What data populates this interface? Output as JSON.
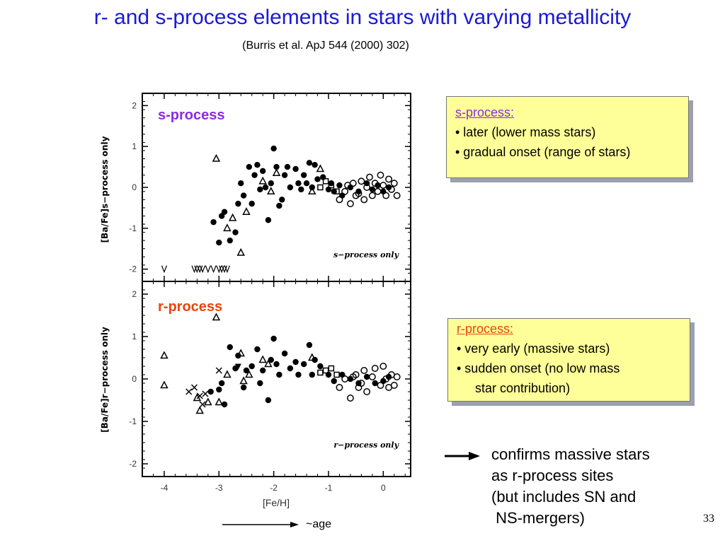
{
  "slide": {
    "title": "r- and s-process elements in stars with varying metallicity",
    "subtitle": "(Burris et al. ApJ 544 (2000) 302)",
    "page_number": "33",
    "age_label": "~age"
  },
  "s_box": {
    "heading": "s-process:",
    "lines": [
      "• later (lower mass stars)",
      "• gradual onset (range of stars)"
    ]
  },
  "r_box": {
    "heading": "r-process:",
    "lines": [
      "• very early (massive stars)",
      "• sudden onset (no low mass",
      "star contribution)"
    ]
  },
  "conclusion": {
    "lines": [
      "confirms massive stars",
      "as r-process sites",
      "(but includes SN and",
      " NS-mergers)"
    ]
  },
  "colors": {
    "title": "#1a1ad6",
    "s_process": "#8a2be2",
    "r_process": "#e8450a",
    "box_fill": "#ffff99"
  },
  "chart_data": [
    {
      "type": "scatter",
      "panel_label": "s-process",
      "annotation": "s−process  only",
      "ylabel": "[Ba/Fe]s−process only",
      "xlabel": "",
      "xlim": [
        -4.4,
        0.5
      ],
      "ylim": [
        -2.3,
        2.3
      ],
      "yticks": [
        -2,
        -1,
        0,
        1,
        2
      ],
      "upper_limit_x": [
        -4.0,
        -3.45,
        -3.4,
        -3.35,
        -3.3,
        -3.2,
        -3.1,
        -3.0,
        -2.95,
        -2.9,
        -2.85
      ],
      "upper_limit_y": -2.0,
      "series": [
        {
          "marker": "filled-circle",
          "points": [
            [
              -3.1,
              -0.85
            ],
            [
              -3.0,
              -1.35
            ],
            [
              -2.95,
              -0.7
            ],
            [
              -2.9,
              -0.6
            ],
            [
              -2.8,
              -1.3
            ],
            [
              -2.7,
              -1.1
            ],
            [
              -2.65,
              -0.4
            ],
            [
              -2.6,
              0.1
            ],
            [
              -2.55,
              -0.2
            ],
            [
              -2.45,
              0.5
            ],
            [
              -2.4,
              -0.4
            ],
            [
              -2.35,
              0.3
            ],
            [
              -2.3,
              0.55
            ],
            [
              -2.25,
              -0.05
            ],
            [
              -2.2,
              0.4
            ],
            [
              -2.15,
              0.0
            ],
            [
              -2.1,
              -0.8
            ],
            [
              -2.05,
              0.1
            ],
            [
              -2.0,
              0.95
            ],
            [
              -1.95,
              0.5
            ],
            [
              -1.9,
              -0.45
            ],
            [
              -1.85,
              -0.3
            ],
            [
              -1.8,
              0.3
            ],
            [
              -1.75,
              0.5
            ],
            [
              -1.7,
              0.0
            ],
            [
              -1.6,
              0.45
            ],
            [
              -1.55,
              0.1
            ],
            [
              -1.5,
              -0.05
            ],
            [
              -1.45,
              0.3
            ],
            [
              -1.4,
              0.1
            ],
            [
              -1.35,
              0.6
            ],
            [
              -1.3,
              0.0
            ],
            [
              -1.25,
              0.55
            ],
            [
              -1.2,
              0.2
            ],
            [
              -1.1,
              0.25
            ],
            [
              -1.0,
              -0.05
            ],
            [
              -0.95,
              0.1
            ],
            [
              -0.9,
              -0.1
            ],
            [
              -0.8,
              0.05
            ],
            [
              -0.75,
              -0.2
            ],
            [
              -0.6,
              0.0
            ],
            [
              -0.45,
              -0.1
            ],
            [
              -0.3,
              0.1
            ],
            [
              -0.2,
              -0.05
            ],
            [
              -0.1,
              0.05
            ],
            [
              0.0,
              -0.1
            ],
            [
              0.1,
              0.0
            ]
          ]
        },
        {
          "marker": "open-circle",
          "points": [
            [
              -0.8,
              -0.3
            ],
            [
              -0.7,
              -0.1
            ],
            [
              -0.6,
              -0.4
            ],
            [
              -0.55,
              0.1
            ],
            [
              -0.5,
              -0.2
            ],
            [
              -0.4,
              0.15
            ],
            [
              -0.35,
              -0.3
            ],
            [
              -0.3,
              0.0
            ],
            [
              -0.25,
              0.25
            ],
            [
              -0.2,
              -0.2
            ],
            [
              -0.15,
              0.1
            ],
            [
              -0.1,
              -0.1
            ],
            [
              -0.05,
              0.3
            ],
            [
              0.0,
              0.05
            ],
            [
              0.05,
              -0.2
            ],
            [
              0.1,
              0.2
            ],
            [
              0.15,
              -0.05
            ],
            [
              0.2,
              0.1
            ],
            [
              0.25,
              -0.2
            ],
            [
              -0.45,
              -0.15
            ],
            [
              -0.65,
              0.05
            ]
          ]
        },
        {
          "marker": "triangle",
          "points": [
            [
              -3.05,
              0.7
            ],
            [
              -2.85,
              -1.0
            ],
            [
              -2.75,
              -0.75
            ],
            [
              -2.6,
              -1.6
            ],
            [
              -2.5,
              -0.6
            ],
            [
              -2.2,
              0.15
            ],
            [
              -2.05,
              -0.1
            ],
            [
              -1.95,
              0.35
            ],
            [
              -1.3,
              -0.1
            ],
            [
              -1.15,
              0.45
            ]
          ]
        },
        {
          "marker": "square",
          "points": [
            [
              -1.15,
              0.0
            ],
            [
              -1.05,
              0.15
            ],
            [
              -0.95,
              0.05
            ],
            [
              -0.85,
              -0.1
            ]
          ]
        }
      ]
    },
    {
      "type": "scatter",
      "panel_label": "r-process",
      "annotation": "r−process  only",
      "ylabel": "[Ba/Fe]r−process only",
      "xlabel": "[Fe/H]",
      "xlim": [
        -4.4,
        0.5
      ],
      "ylim": [
        -2.3,
        2.3
      ],
      "xticks": [
        -4,
        -3,
        -2,
        -1,
        0
      ],
      "yticks": [
        -2,
        -1,
        0,
        1,
        2
      ],
      "series": [
        {
          "marker": "filled-circle",
          "points": [
            [
              -3.15,
              -0.3
            ],
            [
              -3.0,
              -0.25
            ],
            [
              -2.95,
              -0.1
            ],
            [
              -2.9,
              -0.6
            ],
            [
              -2.8,
              0.75
            ],
            [
              -2.7,
              0.25
            ],
            [
              -2.65,
              0.55
            ],
            [
              -2.55,
              -0.2
            ],
            [
              -2.5,
              0.2
            ],
            [
              -2.4,
              0.3
            ],
            [
              -2.3,
              0.7
            ],
            [
              -2.25,
              -0.1
            ],
            [
              -2.2,
              0.2
            ],
            [
              -2.1,
              -0.5
            ],
            [
              -2.05,
              0.45
            ],
            [
              -2.0,
              0.95
            ],
            [
              -1.95,
              0.35
            ],
            [
              -1.9,
              0.1
            ],
            [
              -1.8,
              0.6
            ],
            [
              -1.7,
              0.25
            ],
            [
              -1.6,
              0.4
            ],
            [
              -1.55,
              0.1
            ],
            [
              -1.45,
              0.35
            ],
            [
              -1.35,
              0.8
            ],
            [
              -1.3,
              0.1
            ],
            [
              -1.25,
              0.45
            ],
            [
              -1.15,
              0.3
            ],
            [
              -1.0,
              0.1
            ],
            [
              -0.9,
              -0.05
            ],
            [
              -0.75,
              0.1
            ],
            [
              -0.6,
              0.0
            ],
            [
              -0.45,
              -0.1
            ],
            [
              -0.3,
              0.05
            ],
            [
              -0.15,
              -0.1
            ],
            [
              0.0,
              -0.05
            ],
            [
              0.1,
              0.05
            ]
          ]
        },
        {
          "marker": "open-circle",
          "points": [
            [
              -0.8,
              -0.2
            ],
            [
              -0.7,
              0.0
            ],
            [
              -0.6,
              -0.45
            ],
            [
              -0.5,
              0.1
            ],
            [
              -0.45,
              -0.2
            ],
            [
              -0.35,
              0.2
            ],
            [
              -0.3,
              -0.3
            ],
            [
              -0.2,
              0.05
            ],
            [
              -0.15,
              0.25
            ],
            [
              -0.05,
              -0.15
            ],
            [
              0.0,
              0.3
            ],
            [
              0.05,
              0.0
            ],
            [
              0.1,
              -0.2
            ],
            [
              0.15,
              0.1
            ],
            [
              0.2,
              -0.15
            ],
            [
              0.25,
              0.05
            ],
            [
              -0.4,
              -0.1
            ],
            [
              -0.55,
              0.05
            ]
          ]
        },
        {
          "marker": "triangle",
          "points": [
            [
              -4.0,
              0.55
            ],
            [
              -4.0,
              -0.15
            ],
            [
              -3.4,
              -0.45
            ],
            [
              -3.35,
              -0.75
            ],
            [
              -3.2,
              -0.55
            ],
            [
              -3.05,
              1.45
            ],
            [
              -3.0,
              -0.55
            ],
            [
              -2.85,
              0.1
            ],
            [
              -2.6,
              0.6
            ],
            [
              -2.55,
              -0.05
            ],
            [
              -2.45,
              0.1
            ],
            [
              -2.2,
              0.45
            ],
            [
              -2.1,
              0.35
            ],
            [
              -1.3,
              0.5
            ]
          ]
        },
        {
          "marker": "square",
          "points": [
            [
              -1.15,
              0.15
            ],
            [
              -1.05,
              0.2
            ],
            [
              -0.95,
              0.25
            ],
            [
              -0.85,
              0.1
            ]
          ]
        },
        {
          "marker": "cross",
          "points": [
            [
              -3.55,
              -0.3
            ],
            [
              -3.45,
              -0.2
            ],
            [
              -3.35,
              -0.4
            ],
            [
              -3.3,
              -0.6
            ],
            [
              -3.25,
              -0.35
            ],
            [
              -3.0,
              0.2
            ]
          ]
        },
        {
          "marker": "inverted-triangle",
          "points": [
            [
              -2.65,
              0.3
            ]
          ]
        }
      ]
    }
  ]
}
